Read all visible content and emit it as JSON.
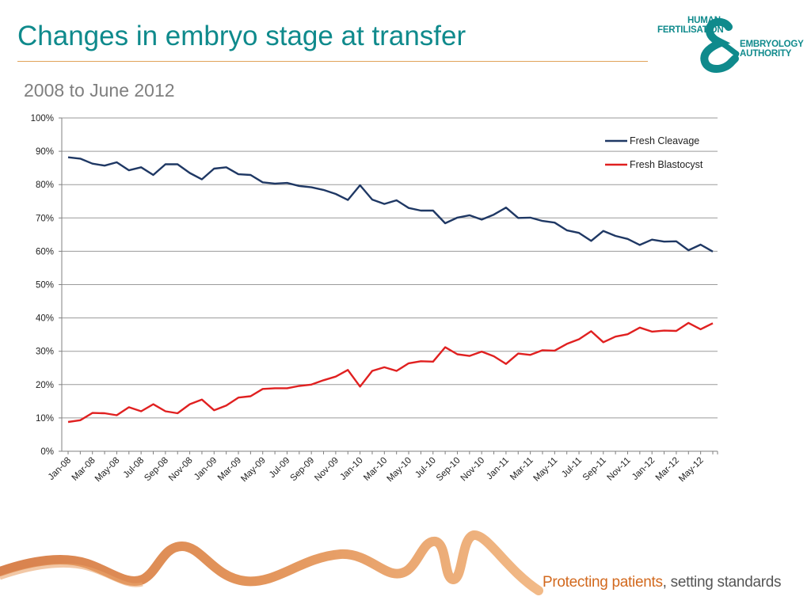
{
  "page": {
    "title": "Changes in embryo stage at transfer",
    "subtitle": "2008 to June 2012",
    "tagline_em": "Protecting patients",
    "tagline_rest": ", setting standards"
  },
  "logo": {
    "line1": "HUMAN",
    "line2": "FERTILISATION",
    "line3": "EMBRYOLOGY",
    "line4": "AUTHORITY",
    "color": "#0f8a8c"
  },
  "chart_data": {
    "type": "line",
    "x": [
      "Jan-08",
      "Feb-08",
      "Mar-08",
      "Apr-08",
      "May-08",
      "Jun-08",
      "Jul-08",
      "Aug-08",
      "Sep-08",
      "Oct-08",
      "Nov-08",
      "Dec-08",
      "Jan-09",
      "Feb-09",
      "Mar-09",
      "Apr-09",
      "May-09",
      "Jun-09",
      "Jul-09",
      "Aug-09",
      "Sep-09",
      "Oct-09",
      "Nov-09",
      "Dec-09",
      "Jan-10",
      "Feb-10",
      "Mar-10",
      "Apr-10",
      "May-10",
      "Jun-10",
      "Jul-10",
      "Aug-10",
      "Sep-10",
      "Oct-10",
      "Nov-10",
      "Dec-10",
      "Jan-11",
      "Feb-11",
      "Mar-11",
      "Apr-11",
      "May-11",
      "Jun-11",
      "Jul-11",
      "Aug-11",
      "Sep-11",
      "Oct-11",
      "Nov-11",
      "Dec-11",
      "Jan-12",
      "Feb-12",
      "Mar-12",
      "Apr-12",
      "May-12",
      "Jun-12"
    ],
    "tick_labels": [
      "Jan-08",
      "Mar-08",
      "May-08",
      "Jul-08",
      "Sep-08",
      "Nov-08",
      "Jan-09",
      "Mar-09",
      "May-09",
      "Jul-09",
      "Sep-09",
      "Nov-09",
      "Jan-10",
      "Mar-10",
      "May-10",
      "Jul-10",
      "Sep-10",
      "Nov-10",
      "Jan-11",
      "Mar-11",
      "May-11",
      "Jul-11",
      "Sep-11",
      "Nov-11",
      "Jan-12",
      "Mar-12",
      "May-12"
    ],
    "y_ticks": [
      "0%",
      "10%",
      "20%",
      "30%",
      "40%",
      "50%",
      "60%",
      "70%",
      "80%",
      "90%",
      "100%"
    ],
    "ylim": [
      0,
      100
    ],
    "grid": true,
    "legend_position": "top-right",
    "series": [
      {
        "name": "Fresh Cleavage",
        "color": "#1f3864",
        "values": [
          88.2,
          87.8,
          86.3,
          85.7,
          86.7,
          84.3,
          85.2,
          82.9,
          86.1,
          86.1,
          83.5,
          81.6,
          84.8,
          85.2,
          83.1,
          82.9,
          80.7,
          80.3,
          80.5,
          79.6,
          79.2,
          78.4,
          77.2,
          75.4,
          79.8,
          75.5,
          74.2,
          75.3,
          73.0,
          72.2,
          72.2,
          68.4,
          70.1,
          70.8,
          69.5,
          71.0,
          73.1,
          70.0,
          70.1,
          69.1,
          68.6,
          66.3,
          65.5,
          63.1,
          66.1,
          64.6,
          63.7,
          61.9,
          63.5,
          62.9,
          63.0,
          60.3,
          62.0,
          59.9
        ]
      },
      {
        "name": "Fresh Blastocyst",
        "color": "#e02020",
        "values": [
          8.8,
          9.3,
          11.5,
          11.4,
          10.8,
          13.2,
          12.0,
          14.1,
          12.0,
          11.4,
          14.1,
          15.5,
          12.3,
          13.7,
          16.1,
          16.5,
          18.7,
          18.9,
          18.9,
          19.6,
          20.0,
          21.3,
          22.4,
          24.4,
          19.4,
          24.1,
          25.2,
          24.1,
          26.4,
          27.0,
          26.9,
          31.2,
          29.1,
          28.6,
          29.9,
          28.5,
          26.2,
          29.3,
          28.9,
          30.3,
          30.2,
          32.2,
          33.6,
          36.0,
          32.7,
          34.4,
          35.1,
          37.1,
          35.9,
          36.2,
          36.1,
          38.5,
          36.6,
          38.4
        ]
      }
    ]
  }
}
